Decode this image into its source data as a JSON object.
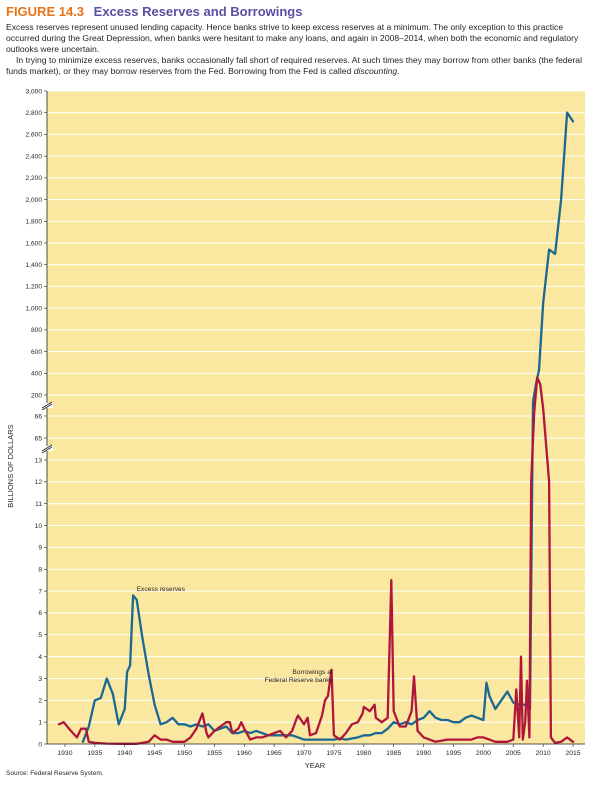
{
  "figure": {
    "label": "FIGURE 14.3",
    "title": "Excess Reserves and Borrowings",
    "caption_p1": "Excess reserves represent unused lending capacity. Hence banks strive to keep excess reserves at a minimum. The only exception to this practice occurred during the Great Depression, when banks were hesitant to make any loans, and again in 2008–2014, when both the economic and regulatory outlooks were uncertain.",
    "caption_p2_main": "In trying to minimize excess reserves, banks occasionally fall short of required reserves. At such times they may borrow from other banks (the federal funds market), or they may borrow reserves from the Fed. Borrowing from the Fed is called",
    "caption_p2_em": "discounting",
    "caption_p2_end": ".",
    "source": "Source: Federal Reserve System."
  },
  "chart_data": {
    "type": "line",
    "title": "",
    "xlabel": "YEAR",
    "ylabel": "BILLIONS OF DOLLARS",
    "xlim": [
      1927,
      2017
    ],
    "x_ticks": [
      1930,
      1935,
      1940,
      1945,
      1950,
      1955,
      1960,
      1965,
      1970,
      1975,
      1980,
      1985,
      1990,
      1995,
      2000,
      2005,
      2010,
      2015
    ],
    "y_axis_segments": [
      {
        "range": [
          0,
          13
        ],
        "ticks": [
          0,
          1,
          2,
          3,
          4,
          5,
          6,
          7,
          8,
          9,
          10,
          11,
          12,
          13
        ]
      },
      {
        "range": [
          65,
          66
        ],
        "ticks": [
          65,
          66
        ]
      },
      {
        "range": [
          200,
          3000
        ],
        "ticks": [
          200,
          400,
          600,
          800,
          1000,
          1200,
          1400,
          1600,
          1800,
          2000,
          2200,
          2400,
          2600,
          2800,
          3000
        ]
      }
    ],
    "y_tick_labels": [
      "0",
      "1",
      "2",
      "3",
      "4",
      "5",
      "6",
      "7",
      "8",
      "9",
      "10",
      "11",
      "12",
      "13",
      "65",
      "66",
      "200",
      "400",
      "600",
      "800",
      "1,000",
      "1,200",
      "1,400",
      "1,600",
      "1,800",
      "2,000",
      "2,200",
      "2,400",
      "2,600",
      "2,800",
      "3,000"
    ],
    "grid": "horizontal",
    "background_color": "#fbe8a0",
    "series": [
      {
        "name": "Excess reserves",
        "color": "#1b6891",
        "points": [
          [
            1933,
            0.1
          ],
          [
            1934,
            0.8
          ],
          [
            1935,
            2.0
          ],
          [
            1936,
            2.1
          ],
          [
            1937,
            3.0
          ],
          [
            1938,
            2.3
          ],
          [
            1939,
            0.9
          ],
          [
            1940,
            1.6
          ],
          [
            1940.4,
            3.3
          ],
          [
            1940.9,
            3.6
          ],
          [
            1941.4,
            6.8
          ],
          [
            1942,
            6.6
          ],
          [
            1943,
            4.8
          ],
          [
            1944,
            3.2
          ],
          [
            1945,
            1.8
          ],
          [
            1946,
            0.9
          ],
          [
            1947,
            1.0
          ],
          [
            1948,
            1.2
          ],
          [
            1949,
            0.9
          ],
          [
            1950,
            0.9
          ],
          [
            1951,
            0.8
          ],
          [
            1952,
            0.9
          ],
          [
            1953,
            0.8
          ],
          [
            1954,
            0.9
          ],
          [
            1955,
            0.6
          ],
          [
            1956,
            0.7
          ],
          [
            1957,
            0.8
          ],
          [
            1958,
            0.5
          ],
          [
            1959,
            0.5
          ],
          [
            1960,
            0.6
          ],
          [
            1961,
            0.5
          ],
          [
            1962,
            0.6
          ],
          [
            1963,
            0.5
          ],
          [
            1964,
            0.4
          ],
          [
            1965,
            0.4
          ],
          [
            1966,
            0.4
          ],
          [
            1967,
            0.4
          ],
          [
            1968,
            0.4
          ],
          [
            1969,
            0.3
          ],
          [
            1970,
            0.2
          ],
          [
            1971,
            0.2
          ],
          [
            1972,
            0.2
          ],
          [
            1973,
            0.2
          ],
          [
            1974,
            0.2
          ],
          [
            1975,
            0.2
          ],
          [
            1976,
            0.25
          ],
          [
            1977,
            0.2
          ],
          [
            1978,
            0.25
          ],
          [
            1979,
            0.3
          ],
          [
            1980,
            0.4
          ],
          [
            1981,
            0.4
          ],
          [
            1982,
            0.5
          ],
          [
            1983,
            0.5
          ],
          [
            1984,
            0.7
          ],
          [
            1985,
            1.0
          ],
          [
            1986,
            0.9
          ],
          [
            1987,
            1.0
          ],
          [
            1988,
            0.9
          ],
          [
            1989,
            1.1
          ],
          [
            1990,
            1.2
          ],
          [
            1991,
            1.5
          ],
          [
            1992,
            1.2
          ],
          [
            1993,
            1.1
          ],
          [
            1994,
            1.1
          ],
          [
            1995,
            1.0
          ],
          [
            1996,
            1.0
          ],
          [
            1997,
            1.2
          ],
          [
            1998,
            1.3
          ],
          [
            1999,
            1.2
          ],
          [
            2000,
            1.1
          ],
          [
            2000.5,
            2.8
          ],
          [
            2001,
            2.2
          ],
          [
            2002,
            1.6
          ],
          [
            2003,
            2.0
          ],
          [
            2004,
            2.4
          ],
          [
            2005,
            1.9
          ],
          [
            2006,
            1.8
          ],
          [
            2007,
            1.8
          ],
          [
            2007.8,
            1.6
          ],
          [
            2008.3,
            180
          ],
          [
            2008.8,
            300
          ],
          [
            2009.3,
            430
          ],
          [
            2010,
            1050
          ],
          [
            2011,
            1540
          ],
          [
            2012,
            1500
          ],
          [
            2013,
            2000
          ],
          [
            2014,
            2800
          ],
          [
            2015,
            2720
          ]
        ]
      },
      {
        "name": "Borrowings at Federal Reserve banks",
        "color": "#b0163a",
        "points": [
          [
            1929,
            0.9
          ],
          [
            1929.8,
            1.0
          ],
          [
            1931,
            0.6
          ],
          [
            1932,
            0.3
          ],
          [
            1932.7,
            0.7
          ],
          [
            1933.5,
            0.7
          ],
          [
            1934,
            0.1
          ],
          [
            1935,
            0.05
          ],
          [
            1937,
            0.02
          ],
          [
            1940,
            0.01
          ],
          [
            1942,
            0.01
          ],
          [
            1944,
            0.1
          ],
          [
            1945,
            0.4
          ],
          [
            1946,
            0.2
          ],
          [
            1947,
            0.2
          ],
          [
            1948,
            0.1
          ],
          [
            1949,
            0.1
          ],
          [
            1950,
            0.1
          ],
          [
            1951,
            0.3
          ],
          [
            1952,
            0.7
          ],
          [
            1953,
            1.4
          ],
          [
            1953.7,
            0.5
          ],
          [
            1954,
            0.3
          ],
          [
            1955,
            0.6
          ],
          [
            1956,
            0.8
          ],
          [
            1957,
            1.0
          ],
          [
            1957.6,
            1.0
          ],
          [
            1958,
            0.5
          ],
          [
            1959,
            0.7
          ],
          [
            1959.5,
            1.0
          ],
          [
            1960,
            0.7
          ],
          [
            1961,
            0.2
          ],
          [
            1962,
            0.3
          ],
          [
            1963,
            0.3
          ],
          [
            1964,
            0.4
          ],
          [
            1965,
            0.5
          ],
          [
            1966,
            0.6
          ],
          [
            1967,
            0.3
          ],
          [
            1968,
            0.6
          ],
          [
            1968.8,
            1.2
          ],
          [
            1969,
            1.3
          ],
          [
            1970,
            0.9
          ],
          [
            1970.6,
            1.2
          ],
          [
            1971,
            0.4
          ],
          [
            1972,
            0.5
          ],
          [
            1973,
            1.3
          ],
          [
            1973.5,
            2.0
          ],
          [
            1974,
            2.2
          ],
          [
            1974.6,
            3.4
          ],
          [
            1975,
            0.4
          ],
          [
            1976,
            0.2
          ],
          [
            1977,
            0.5
          ],
          [
            1978,
            0.9
          ],
          [
            1979,
            1.0
          ],
          [
            1979.8,
            1.4
          ],
          [
            1980,
            1.7
          ],
          [
            1981,
            1.5
          ],
          [
            1981.8,
            1.8
          ],
          [
            1982,
            1.2
          ],
          [
            1983,
            1.0
          ],
          [
            1984,
            1.2
          ],
          [
            1984.6,
            7.5
          ],
          [
            1985,
            1.5
          ],
          [
            1986,
            0.8
          ],
          [
            1987,
            0.8
          ],
          [
            1988,
            1.5
          ],
          [
            1988.4,
            3.1
          ],
          [
            1989,
            0.6
          ],
          [
            1990,
            0.3
          ],
          [
            1991,
            0.2
          ],
          [
            1992,
            0.1
          ],
          [
            1994,
            0.2
          ],
          [
            1995,
            0.2
          ],
          [
            1996,
            0.2
          ],
          [
            1998,
            0.2
          ],
          [
            1999,
            0.3
          ],
          [
            2000,
            0.3
          ],
          [
            2001,
            0.2
          ],
          [
            2002,
            0.1
          ],
          [
            2003,
            0.1
          ],
          [
            2004,
            0.1
          ],
          [
            2005,
            0.2
          ],
          [
            2005.5,
            2.5
          ],
          [
            2006,
            0.3
          ],
          [
            2006.3,
            4.0
          ],
          [
            2006.6,
            0.2
          ],
          [
            2007,
            1.0
          ],
          [
            2007.3,
            2.9
          ],
          [
            2007.7,
            0.3
          ],
          [
            2008,
            12.0
          ],
          [
            2008.5,
            150
          ],
          [
            2009,
            360
          ],
          [
            2009.5,
            300
          ],
          [
            2010,
            160
          ],
          [
            2011,
            12.0
          ],
          [
            2011.3,
            0.3
          ],
          [
            2012,
            0.05
          ],
          [
            2013,
            0.1
          ],
          [
            2014,
            0.3
          ],
          [
            2015,
            0.1
          ]
        ]
      }
    ],
    "annotations": [
      {
        "text": "Excess reserves",
        "x": 1942,
        "y": 7.0
      },
      {
        "lines": [
          "Borrowings at",
          "Federal Reserve banks"
        ],
        "x": 1974.8,
        "y": 3.2
      }
    ]
  }
}
